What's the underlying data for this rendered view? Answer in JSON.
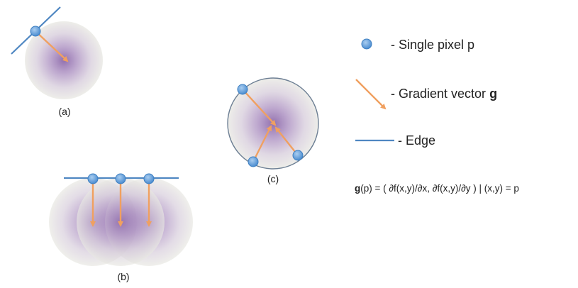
{
  "panels": {
    "a": {
      "label": "(a)"
    },
    "b": {
      "label": "(b)"
    },
    "c": {
      "label": "(c)"
    }
  },
  "legend": {
    "pixel": {
      "text": "- Single pixel p",
      "icon": "pixel-dot-icon"
    },
    "gradient": {
      "text_prefix": "- Gradient vector ",
      "text_bold": "g",
      "icon": "gradient-arrow-icon"
    },
    "edge": {
      "text": "- Edge",
      "icon": "edge-line-icon"
    }
  },
  "formula": {
    "g_bold": "g",
    "body": "(p) = ( ∂f(x,y)/∂x, ∂f(x,y)/∂y ) | (x,y) = p"
  },
  "colors": {
    "pixel_fill": "#5b9bd5",
    "pixel_stroke": "#3d7fc1",
    "arrow": "#f0a060",
    "edge": "#4f87c2",
    "blob_center": "#9b7ab5",
    "blob_edge": "#e6e6e0",
    "ring": "#6d7f94"
  }
}
